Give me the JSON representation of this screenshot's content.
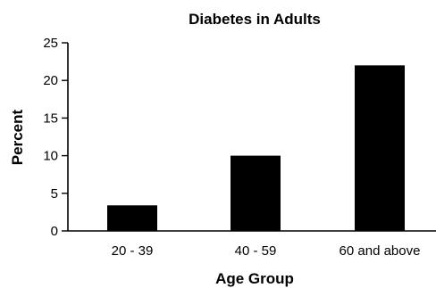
{
  "chart_data": {
    "type": "bar",
    "title": "Diabetes in Adults",
    "xlabel": "Age Group",
    "ylabel": "Percent",
    "categories": [
      "20 - 39",
      "40 - 59",
      "60 and above"
    ],
    "values": [
      3.4,
      10,
      22
    ],
    "ylim": [
      0,
      25
    ],
    "yticks": [
      0,
      5,
      10,
      15,
      20,
      25
    ],
    "grid": false,
    "legend": "none",
    "bar_color": "#000000"
  }
}
